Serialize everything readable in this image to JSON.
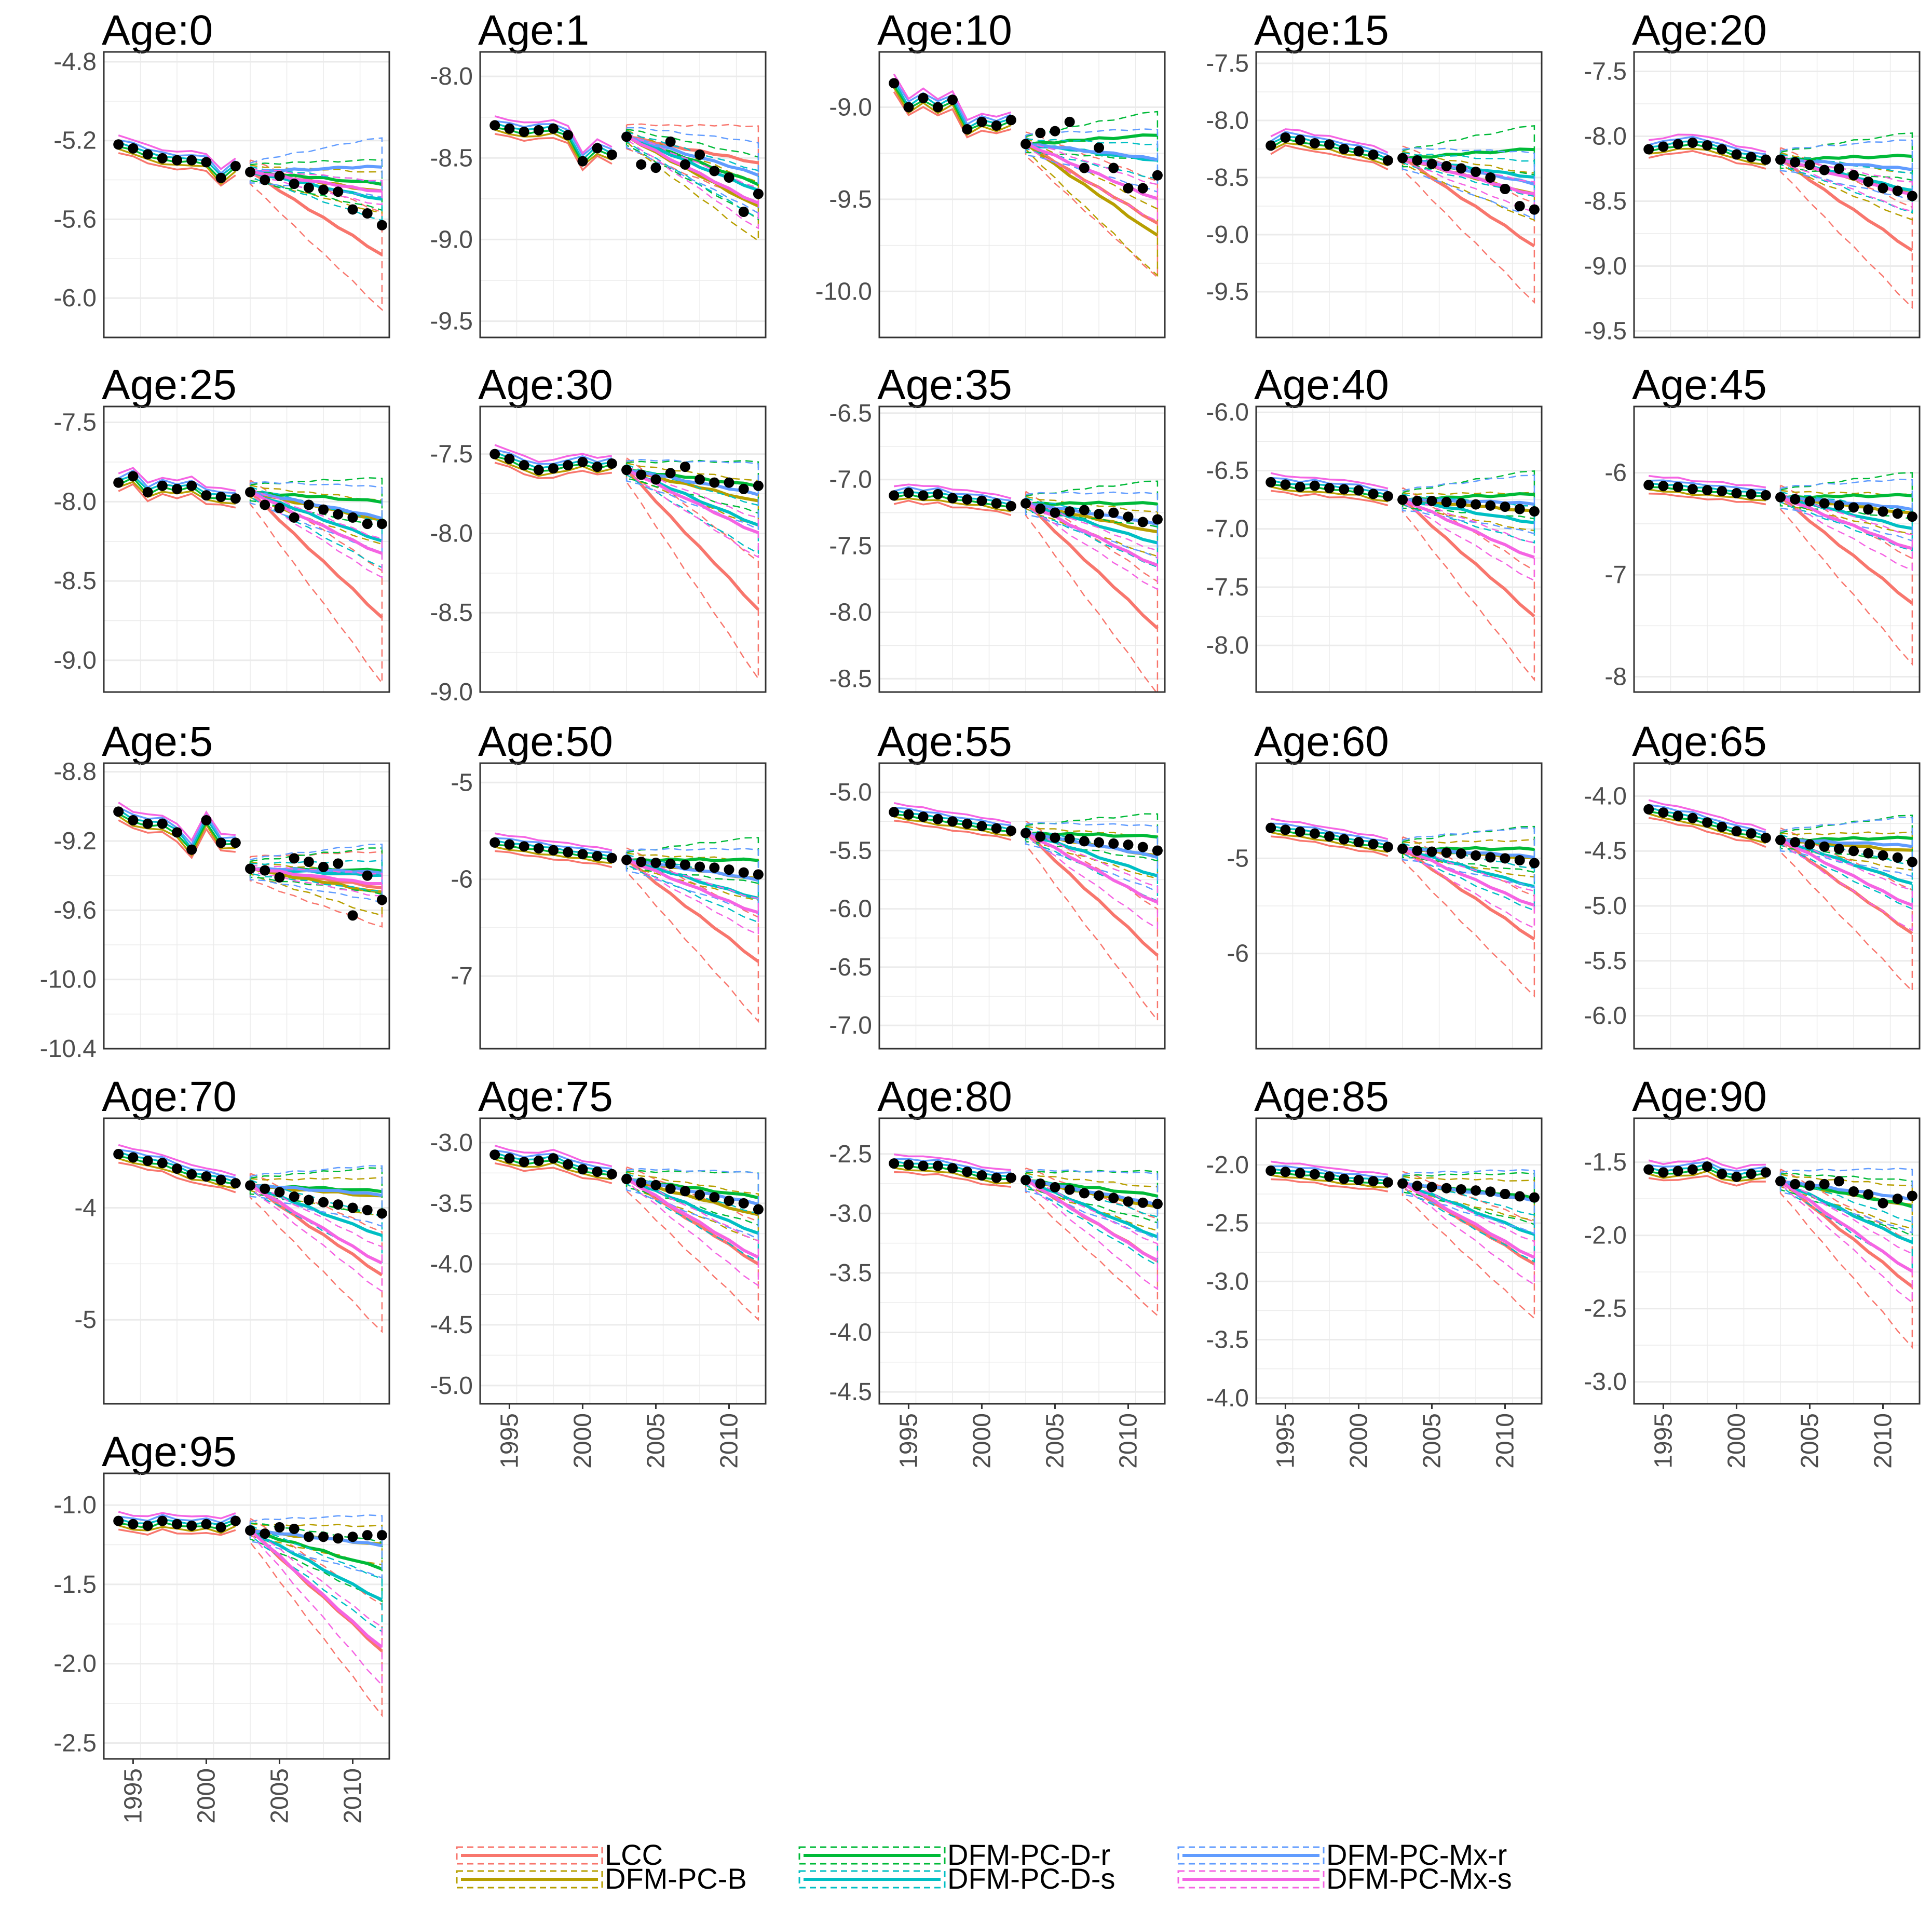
{
  "chart_data": {
    "type": "line",
    "title": "",
    "x_axis": {
      "ticks": [
        1995,
        2000,
        2005,
        2010
      ],
      "range": [
        1993,
        2012.5
      ]
    },
    "fit_start": 1994,
    "forecast_start": 2003,
    "forecast_end": 2012,
    "legend": {
      "position": "bottom",
      "entries": [
        {
          "name": "LCC",
          "color": "#F8766D"
        },
        {
          "name": "DFM-PC-B",
          "color": "#B79F00"
        },
        {
          "name": "DFM-PC-D-r",
          "color": "#00BA38"
        },
        {
          "name": "DFM-PC-D-s",
          "color": "#00BFC4"
        },
        {
          "name": "DFM-PC-Mx-r",
          "color": "#619CFF"
        },
        {
          "name": "DFM-PC-Mx-s",
          "color": "#F564E3"
        }
      ]
    },
    "panels": [
      {
        "title": "Age:0",
        "ylim": [
          -6.2,
          -4.75
        ],
        "yticks": [
          "-4.8",
          "-5.2",
          "-5.6",
          "-6.0"
        ],
        "x_labels": false,
        "observed": [
          -5.22,
          -5.24,
          -5.27,
          -5.29,
          -5.3,
          -5.3,
          -5.31,
          -5.39,
          -5.33,
          -5.36,
          -5.4,
          -5.38,
          -5.42,
          -5.44,
          -5.45,
          -5.46,
          -5.55,
          -5.57,
          -5.63
        ],
        "forecast": {
          "LCC": -5.78,
          "DFM-PC-B": -5.46,
          "DFM-PC-D-r": -5.42,
          "DFM-PC-D-s": -5.5,
          "DFM-PC-Mx-r": -5.33,
          "DFM-PC-Mx-s": -5.46
        }
      },
      {
        "title": "Age:1",
        "ylim": [
          -9.6,
          -7.85
        ],
        "yticks": [
          "-8.0",
          "-8.5",
          "-9.0",
          "-9.5"
        ],
        "x_labels": false,
        "observed": [
          -8.3,
          -8.32,
          -8.34,
          -8.33,
          -8.32,
          -8.36,
          -8.52,
          -8.44,
          -8.48,
          -8.37,
          -8.54,
          -8.56,
          -8.4,
          -8.54,
          -8.48,
          -8.58,
          -8.62,
          -8.83,
          -8.72
        ],
        "forecast": {
          "LCC": -8.53,
          "DFM-PC-B": -8.8,
          "DFM-PC-D-r": -8.66,
          "DFM-PC-D-s": -8.7,
          "DFM-PC-Mx-r": -8.6,
          "DFM-PC-Mx-s": -8.78
        }
      },
      {
        "title": "Age:10",
        "ylim": [
          -10.25,
          -8.7
        ],
        "yticks": [
          "-9.0",
          "-9.5",
          "-10.0"
        ],
        "x_labels": false,
        "observed": [
          -8.87,
          -9.0,
          -8.95,
          -9.0,
          -8.96,
          -9.12,
          -9.08,
          -9.1,
          -9.07,
          -9.2,
          -9.14,
          -9.13,
          -9.08,
          -9.33,
          -9.22,
          -9.33,
          -9.44,
          -9.44,
          -9.37
        ],
        "forecast": {
          "LCC": -9.63,
          "DFM-PC-B": -9.7,
          "DFM-PC-D-r": -9.15,
          "DFM-PC-D-s": -9.29,
          "DFM-PC-Mx-r": -9.28,
          "DFM-PC-Mx-s": -9.5
        }
      },
      {
        "title": "Age:15",
        "ylim": [
          -9.9,
          -7.4
        ],
        "yticks": [
          "-7.5",
          "-8.0",
          "-8.5",
          "-9.0",
          "-9.5"
        ],
        "x_labels": false,
        "observed": [
          -8.22,
          -8.15,
          -8.17,
          -8.2,
          -8.21,
          -8.25,
          -8.27,
          -8.3,
          -8.35,
          -8.33,
          -8.35,
          -8.38,
          -8.4,
          -8.42,
          -8.45,
          -8.5,
          -8.6,
          -8.75,
          -8.78
        ],
        "forecast": {
          "LCC": -9.1,
          "DFM-PC-B": -8.65,
          "DFM-PC-D-r": -8.25,
          "DFM-PC-D-s": -8.5,
          "DFM-PC-Mx-r": -8.55,
          "DFM-PC-Mx-s": -8.65
        }
      },
      {
        "title": "Age:20",
        "ylim": [
          -9.55,
          -7.35
        ],
        "yticks": [
          "-7.5",
          "-8.0",
          "-8.5",
          "-9.0",
          "-9.5"
        ],
        "x_labels": false,
        "observed": [
          -8.1,
          -8.08,
          -8.06,
          -8.05,
          -8.07,
          -8.1,
          -8.14,
          -8.16,
          -8.18,
          -8.18,
          -8.2,
          -8.22,
          -8.26,
          -8.25,
          -8.3,
          -8.35,
          -8.4,
          -8.42,
          -8.46
        ],
        "forecast": {
          "LCC": -8.88,
          "DFM-PC-B": -8.45,
          "DFM-PC-D-r": -8.15,
          "DFM-PC-D-s": -8.42,
          "DFM-PC-Mx-r": -8.25,
          "DFM-PC-Mx-s": -8.45
        }
      },
      {
        "title": "Age:25",
        "ylim": [
          -9.2,
          -7.4
        ],
        "yticks": [
          "-7.5",
          "-8.0",
          "-8.5",
          "-9.0"
        ],
        "x_labels": false,
        "observed": [
          -7.88,
          -7.84,
          -7.94,
          -7.9,
          -7.92,
          -7.9,
          -7.96,
          -7.97,
          -7.98,
          -7.94,
          -8.02,
          -8.04,
          -8.1,
          -8.02,
          -8.05,
          -8.08,
          -8.1,
          -8.14,
          -8.14
        ],
        "forecast": {
          "LCC": -8.73,
          "DFM-PC-B": -8.12,
          "DFM-PC-D-r": -8.0,
          "DFM-PC-D-s": -8.25,
          "DFM-PC-Mx-r": -8.1,
          "DFM-PC-Mx-s": -8.33
        }
      },
      {
        "title": "Age:30",
        "ylim": [
          -9.0,
          -7.2
        ],
        "yticks": [
          "-7.5",
          "-8.0",
          "-8.5",
          "-9.0"
        ],
        "x_labels": false,
        "observed": [
          -7.5,
          -7.53,
          -7.57,
          -7.6,
          -7.59,
          -7.57,
          -7.55,
          -7.58,
          -7.56,
          -7.6,
          -7.63,
          -7.66,
          -7.62,
          -7.58,
          -7.66,
          -7.68,
          -7.68,
          -7.72,
          -7.7
        ],
        "forecast": {
          "LCC": -8.48,
          "DFM-PC-B": -7.8,
          "DFM-PC-D-r": -7.7,
          "DFM-PC-D-s": -7.95,
          "DFM-PC-Mx-r": -7.75,
          "DFM-PC-Mx-s": -8.0
        }
      },
      {
        "title": "Age:35",
        "ylim": [
          -8.6,
          -6.45
        ],
        "yticks": [
          "-6.5",
          "-7.0",
          "-7.5",
          "-8.0",
          "-8.5"
        ],
        "x_labels": false,
        "observed": [
          -7.12,
          -7.1,
          -7.12,
          -7.11,
          -7.14,
          -7.15,
          -7.16,
          -7.18,
          -7.2,
          -7.18,
          -7.22,
          -7.25,
          -7.24,
          -7.23,
          -7.26,
          -7.25,
          -7.28,
          -7.32,
          -7.3
        ],
        "forecast": {
          "LCC": -8.12,
          "DFM-PC-B": -7.4,
          "DFM-PC-D-r": -7.18,
          "DFM-PC-D-s": -7.48,
          "DFM-PC-Mx-r": -7.33,
          "DFM-PC-Mx-s": -7.65
        }
      },
      {
        "title": "Age:40",
        "ylim": [
          -8.4,
          -5.95
        ],
        "yticks": [
          "-6.0",
          "-6.5",
          "-7.0",
          "-7.5",
          "-8.0"
        ],
        "x_labels": false,
        "observed": [
          -6.6,
          -6.62,
          -6.64,
          -6.63,
          -6.65,
          -6.66,
          -6.67,
          -6.7,
          -6.72,
          -6.75,
          -6.76,
          -6.76,
          -6.77,
          -6.78,
          -6.79,
          -6.8,
          -6.81,
          -6.83,
          -6.85
        ],
        "forecast": {
          "LCC": -7.75,
          "DFM-PC-B": -6.85,
          "DFM-PC-D-r": -6.7,
          "DFM-PC-D-s": -6.95,
          "DFM-PC-Mx-r": -6.78,
          "DFM-PC-Mx-s": -7.25
        }
      },
      {
        "title": "Age:45",
        "ylim": [
          -8.15,
          -5.35
        ],
        "yticks": [
          "-6",
          "-7",
          "-8"
        ],
        "x_labels": false,
        "observed": [
          -6.12,
          -6.13,
          -6.14,
          -6.16,
          -6.17,
          -6.18,
          -6.2,
          -6.21,
          -6.22,
          -6.24,
          -6.26,
          -6.28,
          -6.3,
          -6.32,
          -6.34,
          -6.36,
          -6.38,
          -6.4,
          -6.43
        ],
        "forecast": {
          "LCC": -7.28,
          "DFM-PC-B": -6.4,
          "DFM-PC-D-r": -6.22,
          "DFM-PC-D-s": -6.55,
          "DFM-PC-Mx-r": -6.35,
          "DFM-PC-Mx-s": -6.75
        }
      },
      {
        "title": "Age:5",
        "ylim": [
          -10.4,
          -8.75
        ],
        "yticks": [
          "-8.8",
          "-9.2",
          "-9.6",
          "-10.0",
          "-10.4"
        ],
        "x_labels": false,
        "observed": [
          -9.03,
          -9.08,
          -9.1,
          -9.1,
          -9.15,
          -9.25,
          -9.08,
          -9.21,
          -9.21,
          -9.36,
          -9.37,
          -9.41,
          -9.3,
          -9.32,
          -9.35,
          -9.33,
          -9.63,
          -9.4,
          -9.54
        ],
        "forecast": {
          "LCC": -9.47,
          "DFM-PC-B": -9.5,
          "DFM-PC-D-r": -9.37,
          "DFM-PC-D-s": -9.4,
          "DFM-PC-Mx-r": -9.38,
          "DFM-PC-Mx-s": -9.45
        }
      },
      {
        "title": "Age:50",
        "ylim": [
          -7.75,
          -4.8
        ],
        "yticks": [
          "-5",
          "-6",
          "-7"
        ],
        "x_labels": false,
        "observed": [
          -5.62,
          -5.64,
          -5.66,
          -5.68,
          -5.7,
          -5.72,
          -5.74,
          -5.76,
          -5.78,
          -5.8,
          -5.82,
          -5.83,
          -5.84,
          -5.85,
          -5.87,
          -5.88,
          -5.9,
          -5.93,
          -5.95
        ],
        "forecast": {
          "LCC": -6.85,
          "DFM-PC-B": -6.0,
          "DFM-PC-D-r": -5.8,
          "DFM-PC-D-s": -6.2,
          "DFM-PC-Mx-r": -6.0,
          "DFM-PC-Mx-s": -6.35
        }
      },
      {
        "title": "Age:55",
        "ylim": [
          -7.2,
          -4.75
        ],
        "yticks": [
          "-5.0",
          "-5.5",
          "-6.0",
          "-6.5",
          "-7.0"
        ],
        "x_labels": false,
        "observed": [
          -5.17,
          -5.19,
          -5.21,
          -5.23,
          -5.25,
          -5.27,
          -5.29,
          -5.31,
          -5.33,
          -5.35,
          -5.38,
          -5.39,
          -5.4,
          -5.42,
          -5.43,
          -5.44,
          -5.45,
          -5.47,
          -5.5
        ],
        "forecast": {
          "LCC": -6.4,
          "DFM-PC-B": -5.55,
          "DFM-PC-D-r": -5.38,
          "DFM-PC-D-s": -5.72,
          "DFM-PC-Mx-r": -5.55,
          "DFM-PC-Mx-s": -5.95
        }
      },
      {
        "title": "Age:60",
        "ylim": [
          -7.0,
          -4.0
        ],
        "yticks": [
          "-5",
          "-6"
        ],
        "x_labels": false,
        "observed": [
          -4.68,
          -4.7,
          -4.72,
          -4.74,
          -4.77,
          -4.8,
          -4.83,
          -4.85,
          -4.88,
          -4.9,
          -4.92,
          -4.93,
          -4.94,
          -4.95,
          -4.97,
          -4.99,
          -5.0,
          -5.02,
          -5.05
        ],
        "forecast": {
          "LCC": -5.85,
          "DFM-PC-B": -5.0,
          "DFM-PC-D-r": -4.9,
          "DFM-PC-D-s": -5.3,
          "DFM-PC-Mx-r": -4.98,
          "DFM-PC-Mx-s": -5.5
        }
      },
      {
        "title": "Age:65",
        "ylim": [
          -6.3,
          -3.7
        ],
        "yticks": [
          "-4.0",
          "-4.5",
          "-5.0",
          "-5.5",
          "-6.0"
        ],
        "x_labels": false,
        "observed": [
          -4.12,
          -4.15,
          -4.18,
          -4.2,
          -4.24,
          -4.28,
          -4.32,
          -4.34,
          -4.38,
          -4.4,
          -4.42,
          -4.44,
          -4.46,
          -4.48,
          -4.5,
          -4.52,
          -4.54,
          -4.56,
          -4.6
        ],
        "forecast": {
          "LCC": -5.25,
          "DFM-PC-B": -4.5,
          "DFM-PC-D-r": -4.38,
          "DFM-PC-D-s": -4.8,
          "DFM-PC-Mx-r": -4.45,
          "DFM-PC-Mx-s": -5.0
        }
      },
      {
        "title": "Age:70",
        "ylim": [
          -5.75,
          -3.2
        ],
        "yticks": [
          "-4",
          "-5"
        ],
        "x_labels": false,
        "observed": [
          -3.52,
          -3.55,
          -3.58,
          -3.6,
          -3.65,
          -3.7,
          -3.72,
          -3.75,
          -3.78,
          -3.8,
          -3.83,
          -3.86,
          -3.9,
          -3.93,
          -3.95,
          -3.97,
          -4.0,
          -4.02,
          -4.05
        ],
        "forecast": {
          "LCC": -4.6,
          "DFM-PC-B": -3.9,
          "DFM-PC-D-r": -3.85,
          "DFM-PC-D-s": -4.25,
          "DFM-PC-Mx-r": -3.88,
          "DFM-PC-Mx-s": -4.5
        }
      },
      {
        "title": "Age:75",
        "ylim": [
          -5.15,
          -2.8
        ],
        "yticks": [
          "-3.0",
          "-3.5",
          "-4.0",
          "-4.5",
          "-5.0"
        ],
        "x_labels": true,
        "observed": [
          -3.1,
          -3.13,
          -3.16,
          -3.15,
          -3.13,
          -3.18,
          -3.22,
          -3.24,
          -3.26,
          -3.3,
          -3.33,
          -3.35,
          -3.38,
          -3.4,
          -3.43,
          -3.45,
          -3.48,
          -3.5,
          -3.55
        ],
        "forecast": {
          "LCC": -4.0,
          "DFM-PC-B": -3.6,
          "DFM-PC-D-r": -3.45,
          "DFM-PC-D-s": -3.75,
          "DFM-PC-Mx-r": -3.5,
          "DFM-PC-Mx-s": -3.95
        }
      },
      {
        "title": "Age:80",
        "ylim": [
          -4.6,
          -2.2
        ],
        "yticks": [
          "-2.5",
          "-3.0",
          "-3.5",
          "-4.0",
          "-4.5"
        ],
        "x_labels": true,
        "observed": [
          -2.58,
          -2.59,
          -2.6,
          -2.6,
          -2.62,
          -2.65,
          -2.68,
          -2.7,
          -2.7,
          -2.72,
          -2.75,
          -2.78,
          -2.8,
          -2.83,
          -2.85,
          -2.87,
          -2.9,
          -2.91,
          -2.92
        ],
        "forecast": {
          "LCC": -3.4,
          "DFM-PC-B": -2.95,
          "DFM-PC-D-r": -2.85,
          "DFM-PC-D-s": -3.2,
          "DFM-PC-Mx-r": -2.92,
          "DFM-PC-Mx-s": -3.4
        }
      },
      {
        "title": "Age:85",
        "ylim": [
          -4.05,
          -1.6
        ],
        "yticks": [
          "-2.0",
          "-2.5",
          "-3.0",
          "-3.5",
          "-4.0"
        ],
        "x_labels": true,
        "observed": [
          -2.05,
          -2.06,
          -2.07,
          -2.08,
          -2.1,
          -2.12,
          -2.13,
          -2.14,
          -2.15,
          -2.16,
          -2.18,
          -2.19,
          -2.2,
          -2.21,
          -2.22,
          -2.23,
          -2.25,
          -2.27,
          -2.28
        ],
        "forecast": {
          "LCC": -2.85,
          "DFM-PC-B": -2.3,
          "DFM-PC-D-r": -2.28,
          "DFM-PC-D-s": -2.6,
          "DFM-PC-Mx-r": -2.3,
          "DFM-PC-Mx-s": -2.8
        }
      },
      {
        "title": "Age:90",
        "ylim": [
          -3.15,
          -1.2
        ],
        "yticks": [
          "-1.5",
          "-2.0",
          "-2.5",
          "-3.0"
        ],
        "x_labels": true,
        "observed": [
          -1.55,
          -1.57,
          -1.56,
          -1.55,
          -1.53,
          -1.58,
          -1.6,
          -1.58,
          -1.57,
          -1.63,
          -1.65,
          -1.66,
          -1.65,
          -1.63,
          -1.7,
          -1.72,
          -1.78,
          -1.75,
          -1.73
        ],
        "forecast": {
          "LCC": -2.35,
          "DFM-PC-B": -1.8,
          "DFM-PC-D-r": -1.8,
          "DFM-PC-D-s": -2.05,
          "DFM-PC-Mx-r": -1.75,
          "DFM-PC-Mx-s": -2.25
        }
      },
      {
        "title": "Age:95",
        "ylim": [
          -2.6,
          -0.8
        ],
        "yticks": [
          "-1.0",
          "-1.5",
          "-2.0",
          "-2.5"
        ],
        "x_labels": true,
        "observed": [
          -1.1,
          -1.12,
          -1.13,
          -1.1,
          -1.12,
          -1.13,
          -1.12,
          -1.14,
          -1.1,
          -1.16,
          -1.18,
          -1.14,
          -1.15,
          -1.2,
          -1.2,
          -1.21,
          -1.2,
          -1.19,
          -1.19
        ],
        "forecast": {
          "LCC": -1.92,
          "DFM-PC-B": -1.25,
          "DFM-PC-D-r": -1.4,
          "DFM-PC-D-s": -1.6,
          "DFM-PC-Mx-r": -1.25,
          "DFM-PC-Mx-s": -1.9
        }
      }
    ]
  }
}
